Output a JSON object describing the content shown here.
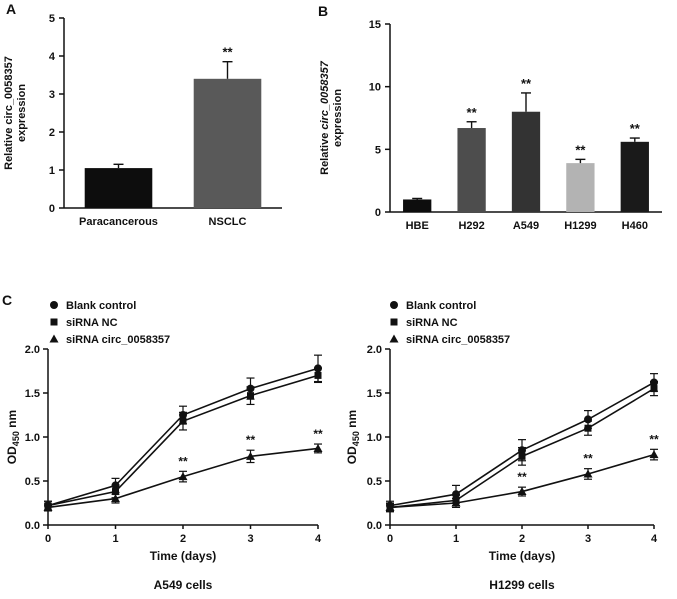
{
  "panel_labels": {
    "a": "A",
    "b": "B",
    "c": "C"
  },
  "chart_data": [
    {
      "id": "chartA",
      "panel": "A",
      "type": "bar",
      "ylabel_lines": [
        [
          {
            "t": "Relative circ_0058357"
          }
        ],
        [
          {
            "t": "expression"
          }
        ]
      ],
      "ylim": [
        0,
        5
      ],
      "yticks": [
        0,
        1,
        2,
        3,
        4,
        5
      ],
      "ytick_labels": [
        "0",
        "1",
        "2",
        "3",
        "4",
        "5"
      ],
      "categories": [
        "Paracancerous",
        "NSCLC"
      ],
      "values": [
        1.05,
        3.4
      ],
      "errors": [
        0.1,
        0.45
      ],
      "bar_colors": [
        "#0d0d0d",
        "#595959"
      ],
      "annotations": [
        "",
        "**"
      ]
    },
    {
      "id": "chartB",
      "panel": "B",
      "type": "bar",
      "ylabel_lines": [
        [
          {
            "t": "Relative "
          },
          {
            "t": "circ_0058357",
            "i": true
          }
        ],
        [
          {
            "t": "expression"
          }
        ]
      ],
      "ylim": [
        0,
        15
      ],
      "yticks": [
        0,
        5,
        10,
        15
      ],
      "ytick_labels": [
        "0",
        "5",
        "10",
        "15"
      ],
      "categories": [
        "HBE",
        "H292",
        "A549",
        "H1299",
        "H460"
      ],
      "values": [
        1.0,
        6.7,
        8.0,
        3.9,
        5.6
      ],
      "errors": [
        0.08,
        0.5,
        1.5,
        0.3,
        0.3
      ],
      "bar_colors": [
        "#0d0d0d",
        "#4d4d4d",
        "#333333",
        "#b3b3b3",
        "#1a1a1a"
      ],
      "annotations": [
        "",
        "**",
        "**",
        "**",
        "**"
      ]
    },
    {
      "id": "chartC1",
      "panel": "C",
      "type": "line",
      "subtitle": "A549 cells",
      "xlabel": "Time (days)",
      "ylabel_segments": [
        {
          "t": "OD"
        },
        {
          "t": "450",
          "sub": true
        },
        {
          "t": " nm"
        }
      ],
      "xlim": [
        0,
        4
      ],
      "xticks": [
        0,
        1,
        2,
        3,
        4
      ],
      "xtick_labels": [
        "0",
        "1",
        "2",
        "3",
        "4"
      ],
      "ylim": [
        0,
        2
      ],
      "yticks": [
        0,
        0.5,
        1,
        1.5,
        2
      ],
      "ytick_labels": [
        "0.0",
        "0.5",
        "1.0",
        "1.5",
        "2.0"
      ],
      "legend_position": "top-left",
      "series": [
        {
          "name": "Blank control",
          "marker": "circle",
          "values": [
            0.22,
            0.45,
            1.25,
            1.55,
            1.78
          ],
          "errors": [
            0.05,
            0.08,
            0.1,
            0.12,
            0.15
          ],
          "annotations": [
            "",
            "",
            "",
            "",
            ""
          ]
        },
        {
          "name": "siRNA NC",
          "marker": "square",
          "values": [
            0.22,
            0.38,
            1.18,
            1.47,
            1.7
          ],
          "errors": [
            0.05,
            0.07,
            0.1,
            0.1,
            0.08
          ],
          "annotations": [
            "",
            "",
            "",
            "",
            ""
          ]
        },
        {
          "name": "siRNA circ_0058357",
          "marker": "triangle",
          "values": [
            0.2,
            0.3,
            0.55,
            0.78,
            0.87
          ],
          "errors": [
            0.04,
            0.05,
            0.06,
            0.07,
            0.05
          ],
          "annotations": [
            "",
            "",
            "**",
            "**",
            "**"
          ]
        }
      ]
    },
    {
      "id": "chartC2",
      "panel": "C",
      "type": "line",
      "subtitle": "H1299 cells",
      "xlabel": "Time (days)",
      "ylabel_segments": [
        {
          "t": "OD"
        },
        {
          "t": "450",
          "sub": true
        },
        {
          "t": " nm"
        }
      ],
      "xlim": [
        0,
        4
      ],
      "xticks": [
        0,
        1,
        2,
        3,
        4
      ],
      "xtick_labels": [
        "0",
        "1",
        "2",
        "3",
        "4"
      ],
      "ylim": [
        0,
        2
      ],
      "yticks": [
        0,
        0.5,
        1,
        1.5,
        2
      ],
      "ytick_labels": [
        "0.0",
        "0.5",
        "1.0",
        "1.5",
        "2.0"
      ],
      "legend_position": "top-left",
      "series": [
        {
          "name": "Blank control",
          "marker": "circle",
          "values": [
            0.22,
            0.35,
            0.85,
            1.2,
            1.62
          ],
          "errors": [
            0.05,
            0.1,
            0.12,
            0.1,
            0.1
          ],
          "annotations": [
            "",
            "",
            "",
            "",
            ""
          ]
        },
        {
          "name": "siRNA NC",
          "marker": "square",
          "values": [
            0.2,
            0.28,
            0.78,
            1.1,
            1.55
          ],
          "errors": [
            0.05,
            0.06,
            0.1,
            0.08,
            0.08
          ],
          "annotations": [
            "",
            "",
            "",
            "",
            ""
          ]
        },
        {
          "name": "siRNA circ_0058357",
          "marker": "triangle",
          "values": [
            0.2,
            0.25,
            0.38,
            0.58,
            0.8
          ],
          "errors": [
            0.04,
            0.05,
            0.05,
            0.06,
            0.06
          ],
          "annotations": [
            "",
            "",
            "**",
            "**",
            "**"
          ]
        }
      ]
    }
  ]
}
